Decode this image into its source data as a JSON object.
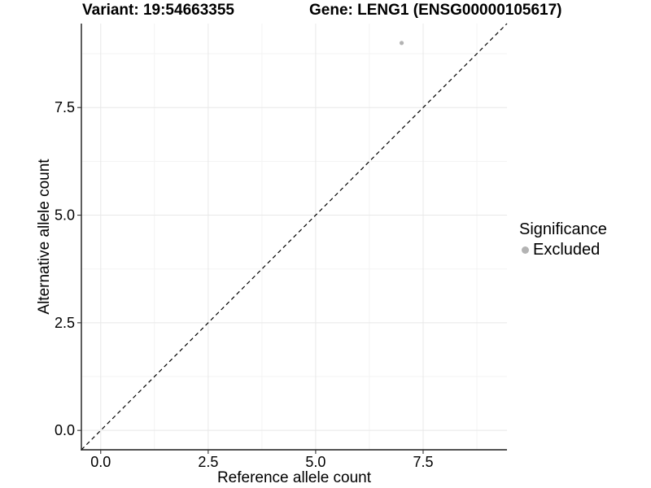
{
  "figure": {
    "title_variant": "Variant: 19:54663355",
    "title_gene": "Gene: LENG1 (ENSG00000105617)"
  },
  "axes": {
    "x_title": "Reference allele count",
    "y_title": "Alternative allele count"
  },
  "legend": {
    "title": "Significance",
    "items": [
      {
        "label": "Excluded",
        "color": "#b3b3b3",
        "marker": "circle"
      }
    ]
  },
  "chart_data": {
    "type": "scatter",
    "title": "Variant: 19:54663355 / Gene: LENG1 (ENSG00000105617)",
    "xlabel": "Reference allele count",
    "ylabel": "Alternative allele count",
    "xlim": [
      -0.45,
      9.45
    ],
    "ylim": [
      -0.45,
      9.45
    ],
    "x_ticks": [
      0,
      2.5,
      5,
      7.5
    ],
    "x_tick_labels": [
      "0.0",
      "2.5",
      "5.0",
      "7.5"
    ],
    "y_ticks": [
      0,
      2.5,
      5,
      7.5
    ],
    "y_tick_labels": [
      "0.0",
      "2.5",
      "5.0",
      "7.5"
    ],
    "x_minor_ticks": [
      1.25,
      3.75,
      6.25,
      8.75
    ],
    "y_minor_ticks": [
      1.25,
      3.75,
      6.25,
      8.75
    ],
    "grid": "major+minor",
    "legend_position": "right",
    "series": [
      {
        "name": "Excluded",
        "color": "#b3b3b3",
        "points": [
          {
            "x": 7,
            "y": 9
          }
        ]
      }
    ],
    "reference_line": {
      "slope": 1,
      "intercept": 0,
      "linetype": "dashed",
      "color": "#000000"
    }
  },
  "colors": {
    "background": "#ffffff",
    "axis_line": "#1a1a1a",
    "tick_mark": "#333333",
    "grid_major": "#e8e8e8",
    "grid_minor": "#f3f3f3",
    "text": "#000000",
    "excluded": "#b3b3b3"
  }
}
